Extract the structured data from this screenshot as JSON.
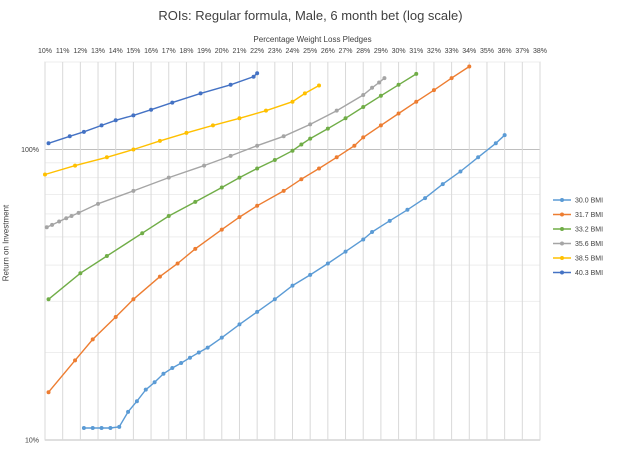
{
  "chart_data": {
    "type": "line",
    "title": "ROIs: Regular formula, Male, 6 month bet (log scale)",
    "xlabel": "Percentage Weight Loss Pledges",
    "ylabel": "Return on Investment",
    "x_ticks": [
      "10%",
      "11%",
      "12%",
      "13%",
      "14%",
      "15%",
      "16%",
      "17%",
      "18%",
      "19%",
      "20%",
      "21%",
      "22%",
      "23%",
      "24%",
      "25%",
      "26%",
      "27%",
      "28%",
      "29%",
      "30%",
      "31%",
      "32%",
      "33%",
      "34%",
      "35%",
      "36%",
      "37%",
      "38%"
    ],
    "y_ticks": [
      "10%",
      "100%"
    ],
    "xlim": [
      10,
      38
    ],
    "ylim": [
      10,
      200
    ],
    "y_scale": "log",
    "x_axis_position": "top",
    "grid": true,
    "legend_position": "right",
    "series": [
      {
        "name": "30.0 BMI",
        "color": "#5b9bd5",
        "x": [
          12.2,
          12.7,
          13.2,
          13.7,
          14.2,
          14.7,
          15.2,
          15.7,
          16.2,
          16.7,
          17.2,
          17.7,
          18.2,
          18.7,
          19.2,
          20.0,
          21.0,
          22.0,
          23.0,
          24.0,
          25.0,
          26.0,
          27.0,
          28.0,
          28.5,
          29.5,
          30.5,
          31.5,
          32.5,
          33.5,
          34.5,
          35.5,
          36.0
        ],
        "y": [
          11,
          11,
          11,
          11,
          11.1,
          12.5,
          13.6,
          14.9,
          15.8,
          16.9,
          17.7,
          18.4,
          19.2,
          20,
          20.8,
          22.5,
          25,
          27.6,
          30.5,
          34,
          37,
          40.5,
          44.5,
          49,
          52,
          56.8,
          62,
          68,
          76,
          84,
          94,
          105,
          112
        ]
      },
      {
        "name": "31.7 BMI",
        "color": "#ed7d31",
        "x": [
          10.2,
          11.7,
          12.7,
          14.0,
          15.0,
          16.5,
          17.5,
          18.5,
          20.0,
          21.0,
          22.0,
          23.5,
          24.5,
          25.5,
          26.5,
          27.5,
          28.0,
          29.0,
          30.0,
          31.0,
          32.0,
          33.0,
          34.0
        ],
        "y": [
          14.6,
          18.8,
          22.2,
          26.5,
          30.5,
          36.5,
          40.5,
          45.5,
          53,
          58.5,
          64,
          72,
          79,
          86,
          94,
          103,
          110,
          121,
          133,
          146,
          160,
          176,
          193
        ]
      },
      {
        "name": "33.2 BMI",
        "color": "#70ad47",
        "x": [
          10.2,
          12.0,
          13.5,
          15.5,
          17.0,
          18.5,
          20.0,
          21.0,
          22.0,
          23.0,
          24.0,
          24.5,
          25.0,
          26.0,
          27.0,
          28.0,
          29.0,
          30.0,
          31.0
        ],
        "y": [
          30.5,
          37.5,
          43,
          51.5,
          59,
          66,
          74,
          80,
          86,
          92,
          99,
          104,
          109,
          118,
          128,
          140,
          153,
          167,
          182
        ]
      },
      {
        "name": "35.6 BMI",
        "color": "#a5a5a5",
        "x": [
          10.1,
          10.4,
          10.8,
          11.2,
          11.5,
          11.9,
          13.0,
          15.0,
          17.0,
          19.0,
          20.5,
          22.0,
          23.5,
          25.0,
          26.5,
          28.0,
          28.5,
          28.9,
          29.2
        ],
        "y": [
          54,
          55,
          56.5,
          58,
          59,
          60.5,
          65,
          72,
          80,
          88,
          95,
          103,
          111,
          122,
          136,
          154,
          163,
          170,
          176
        ]
      },
      {
        "name": "38.5 BMI",
        "color": "#ffc000",
        "x": [
          10.0,
          11.7,
          13.5,
          15.0,
          16.5,
          18.0,
          19.5,
          21.0,
          22.5,
          24.0,
          24.7,
          25.5
        ],
        "y": [
          82,
          88,
          94,
          100,
          107,
          114,
          121,
          128,
          136,
          146,
          156,
          166
        ]
      },
      {
        "name": "40.3 BMI",
        "color": "#4472c4",
        "x": [
          10.2,
          11.4,
          12.2,
          13.2,
          14.0,
          15.0,
          16.0,
          17.2,
          18.8,
          20.5,
          21.8,
          22.0
        ],
        "y": [
          105,
          111,
          115,
          121,
          126,
          131,
          137,
          145,
          156,
          167,
          178,
          183
        ]
      }
    ]
  }
}
